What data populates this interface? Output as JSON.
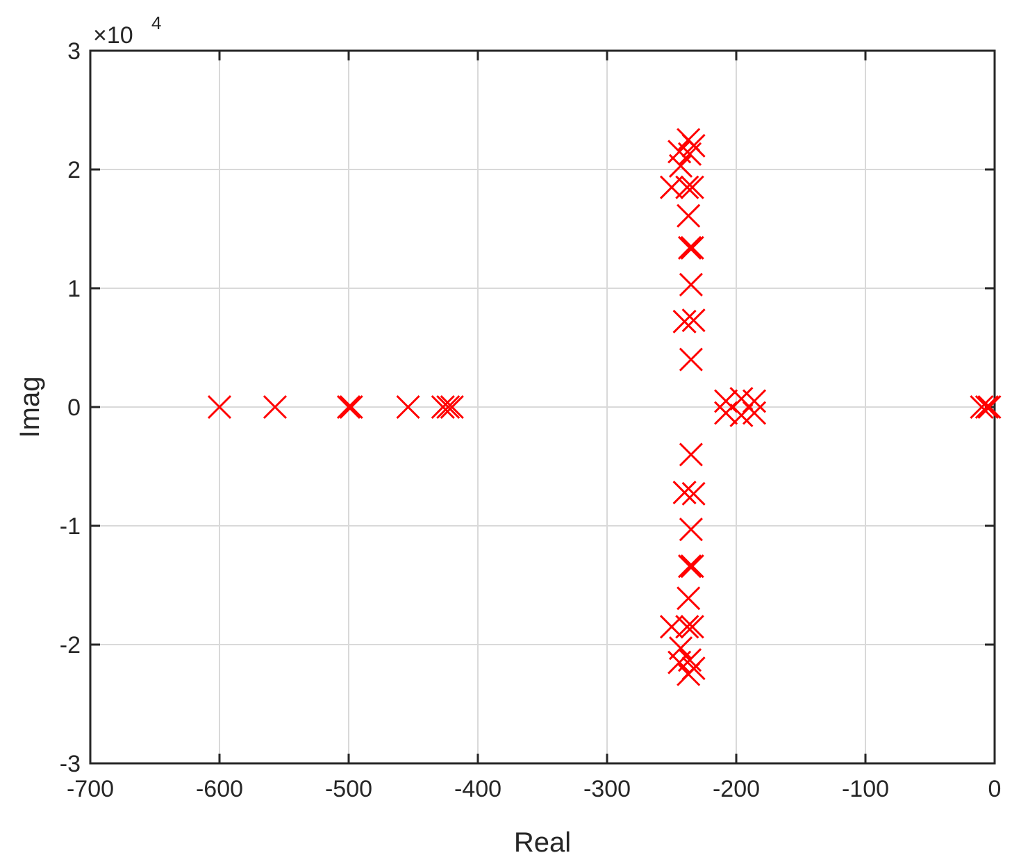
{
  "chart_data": {
    "type": "scatter",
    "xlabel": "Real",
    "ylabel": "Imag",
    "xlim": [
      -700,
      0
    ],
    "ylim": [
      -30000,
      30000
    ],
    "x_ticks": [
      "-700",
      "-600",
      "-500",
      "-400",
      "-300",
      "-200",
      "-100",
      "0"
    ],
    "y_ticks": [
      "-3",
      "-2",
      "-1",
      "0",
      "1",
      "2",
      "3"
    ],
    "y_exponent": {
      "base": "×10",
      "power": "4"
    },
    "grid": true,
    "marker": "x",
    "marker_color": "#ff0000",
    "points": [
      [
        -600,
        0
      ],
      [
        -557,
        0
      ],
      [
        -500,
        0
      ],
      [
        -498,
        0
      ],
      [
        -454,
        0
      ],
      [
        -427,
        0
      ],
      [
        -423,
        0
      ],
      [
        -420,
        0
      ],
      [
        -208,
        500
      ],
      [
        -208,
        -500
      ],
      [
        -196,
        700
      ],
      [
        -196,
        -700
      ],
      [
        -186,
        500
      ],
      [
        -186,
        -500
      ],
      [
        -10,
        0
      ],
      [
        -6,
        0
      ],
      [
        -4,
        0
      ],
      [
        -235,
        4000
      ],
      [
        -235,
        -4000
      ],
      [
        -240,
        7200
      ],
      [
        -240,
        -7200
      ],
      [
        -233,
        7300
      ],
      [
        -233,
        -7300
      ],
      [
        -235,
        10300
      ],
      [
        -235,
        -10300
      ],
      [
        -236,
        13400
      ],
      [
        -236,
        -13400
      ],
      [
        -234,
        13400
      ],
      [
        -234,
        -13400
      ],
      [
        -237,
        16100
      ],
      [
        -237,
        -16100
      ],
      [
        -250,
        18500
      ],
      [
        -250,
        -18500
      ],
      [
        -238,
        18500
      ],
      [
        -238,
        -18500
      ],
      [
        -234,
        18500
      ],
      [
        -234,
        -18500
      ],
      [
        -243,
        20300
      ],
      [
        -243,
        -20300
      ],
      [
        -244,
        21500
      ],
      [
        -244,
        -21500
      ],
      [
        -236,
        21300
      ],
      [
        -236,
        -21300
      ],
      [
        -233,
        22000
      ],
      [
        -233,
        -22000
      ],
      [
        -237,
        22500
      ],
      [
        -237,
        -22500
      ]
    ]
  }
}
